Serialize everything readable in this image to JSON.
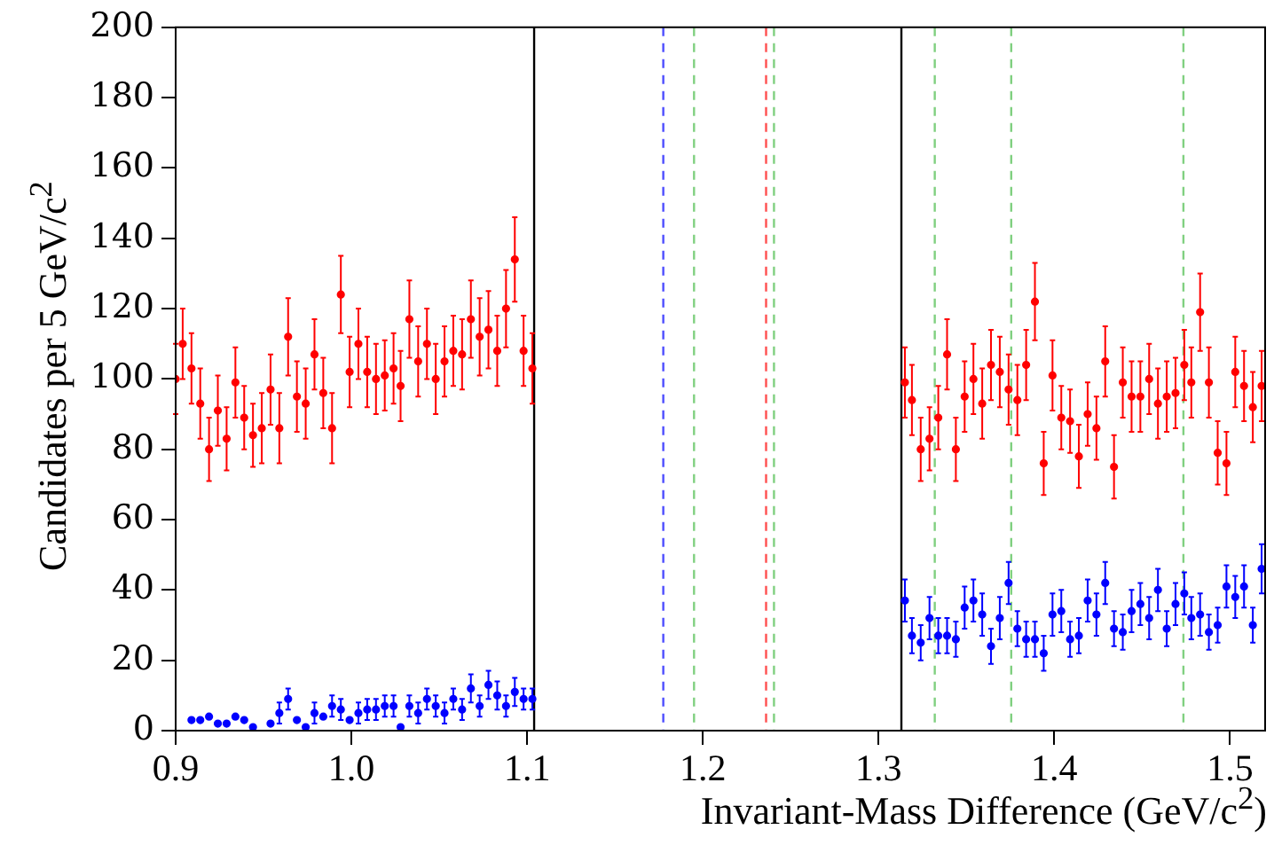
{
  "chart_data": {
    "type": "scatter",
    "xlabel": "Invariant-Mass Difference (GeV/c$^{2}$)",
    "ylabel": "Candidates per 5 GeV/c$^{2}$",
    "xlim": [
      0.9,
      1.52
    ],
    "xticks": [
      {
        "value": 0.9,
        "label": "0.9"
      },
      {
        "value": 1.0,
        "label": "1.0"
      },
      {
        "value": 1.1,
        "label": "1.1"
      },
      {
        "value": 1.2,
        "label": "1.2"
      },
      {
        "value": 1.3,
        "label": "1.3"
      },
      {
        "value": 1.4,
        "label": "1.4"
      },
      {
        "value": 1.5,
        "label": "1.5"
      }
    ],
    "ylim": [
      0,
      200
    ],
    "yticks": [
      0,
      20,
      40,
      60,
      80,
      100,
      120,
      140,
      160,
      180,
      200
    ],
    "grid": false,
    "legend": false,
    "marker": "circle",
    "series": [
      {
        "color": "#ff0000",
        "x": [
          0.9,
          0.904,
          0.909,
          0.914,
          0.919,
          0.924,
          0.929,
          0.934,
          0.939,
          0.944,
          0.949,
          0.954,
          0.959,
          0.964,
          0.969,
          0.974,
          0.979,
          0.984,
          0.989,
          0.994,
          0.999,
          1.004,
          1.009,
          1.014,
          1.019,
          1.024,
          1.028,
          1.033,
          1.038,
          1.043,
          1.048,
          1.053,
          1.058,
          1.063,
          1.068,
          1.073,
          1.078,
          1.083,
          1.088,
          1.093,
          1.098,
          1.103
        ],
        "values": [
          100,
          110,
          103,
          93,
          80,
          91,
          83,
          99,
          89,
          84,
          86,
          97,
          86,
          112,
          95,
          93,
          107,
          96,
          86,
          124,
          102,
          110,
          102,
          100,
          101,
          103,
          98,
          117,
          105,
          110,
          100,
          105,
          108,
          107,
          117,
          112,
          114,
          108,
          120,
          134,
          108,
          103
        ],
        "errors": [
          10,
          10,
          10,
          10,
          9,
          10,
          9,
          10,
          9,
          9,
          10,
          10,
          10,
          11,
          10,
          10,
          10,
          10,
          10,
          11,
          10,
          10,
          10,
          10,
          10,
          10,
          10,
          11,
          10,
          10,
          10,
          10,
          10,
          10,
          11,
          11,
          11,
          10,
          11,
          12,
          10,
          10
        ]
      },
      {
        "color": "#0000ff",
        "x": [
          0.909,
          0.914,
          0.919,
          0.924,
          0.929,
          0.934,
          0.939,
          0.944,
          0.954,
          0.959,
          0.964,
          0.969,
          0.974,
          0.979,
          0.984,
          0.989,
          0.994,
          0.999,
          1.004,
          1.009,
          1.014,
          1.019,
          1.024,
          1.028,
          1.033,
          1.038,
          1.043,
          1.048,
          1.053,
          1.058,
          1.063,
          1.068,
          1.073,
          1.078,
          1.083,
          1.088,
          1.093,
          1.098,
          1.103
        ],
        "values": [
          3,
          3,
          4,
          2,
          2,
          4,
          3,
          1,
          2,
          5,
          9,
          3,
          1,
          5,
          4,
          7,
          6,
          3,
          5,
          6,
          6,
          7,
          7,
          1,
          7,
          5,
          9,
          7,
          5,
          9,
          6,
          12,
          7,
          13,
          10,
          7,
          11,
          9,
          9
        ],
        "errors": [
          null,
          null,
          null,
          null,
          null,
          null,
          null,
          null,
          null,
          3,
          3,
          null,
          null,
          3,
          null,
          3,
          3,
          null,
          3,
          3,
          3,
          3,
          3,
          null,
          3,
          3,
          3,
          3,
          3,
          3,
          3,
          4,
          3,
          4,
          4,
          3,
          4,
          3,
          3
        ]
      },
      {
        "color": "#ff0000",
        "x": [
          1.315,
          1.319,
          1.324,
          1.329,
          1.334,
          1.339,
          1.344,
          1.349,
          1.354,
          1.359,
          1.364,
          1.369,
          1.374,
          1.379,
          1.384,
          1.389,
          1.394,
          1.399,
          1.404,
          1.409,
          1.414,
          1.419,
          1.424,
          1.429,
          1.434,
          1.439,
          1.444,
          1.449,
          1.454,
          1.459,
          1.464,
          1.469,
          1.474,
          1.478,
          1.483,
          1.488,
          1.493,
          1.498,
          1.503,
          1.508,
          1.513,
          1.518
        ],
        "values": [
          99,
          94,
          80,
          83,
          89,
          107,
          80,
          95,
          100,
          93,
          104,
          102,
          97,
          94,
          104,
          122,
          76,
          101,
          89,
          88,
          78,
          90,
          86,
          105,
          75,
          99,
          95,
          95,
          100,
          93,
          95,
          96,
          104,
          99,
          119,
          99,
          79,
          76,
          102,
          98,
          92,
          98
        ],
        "errors": [
          10,
          10,
          9,
          9,
          9,
          10,
          9,
          10,
          10,
          10,
          10,
          10,
          10,
          10,
          10,
          11,
          9,
          10,
          9,
          9,
          9,
          9,
          9,
          10,
          9,
          10,
          10,
          10,
          10,
          10,
          10,
          10,
          10,
          10,
          11,
          10,
          9,
          9,
          10,
          10,
          10,
          10
        ]
      },
      {
        "color": "#0000ff",
        "x": [
          1.315,
          1.319,
          1.324,
          1.329,
          1.334,
          1.339,
          1.344,
          1.349,
          1.354,
          1.359,
          1.364,
          1.369,
          1.374,
          1.379,
          1.384,
          1.389,
          1.394,
          1.399,
          1.404,
          1.409,
          1.414,
          1.419,
          1.424,
          1.429,
          1.434,
          1.439,
          1.444,
          1.449,
          1.454,
          1.459,
          1.464,
          1.469,
          1.474,
          1.478,
          1.483,
          1.488,
          1.493,
          1.498,
          1.503,
          1.508,
          1.513,
          1.518
        ],
        "values": [
          37,
          27,
          25,
          32,
          27,
          27,
          26,
          35,
          37,
          33,
          24,
          32,
          42,
          29,
          26,
          26,
          22,
          33,
          34,
          26,
          27,
          37,
          33,
          42,
          29,
          28,
          34,
          36,
          32,
          40,
          29,
          36,
          39,
          32,
          33,
          28,
          30,
          41,
          38,
          41,
          30,
          46
        ],
        "errors": [
          6,
          5,
          5,
          6,
          5,
          5,
          5,
          6,
          6,
          6,
          5,
          6,
          6,
          5,
          5,
          5,
          5,
          6,
          6,
          5,
          5,
          6,
          6,
          6,
          5,
          5,
          6,
          6,
          6,
          6,
          5,
          6,
          6,
          6,
          6,
          5,
          5,
          6,
          6,
          6,
          5,
          7
        ]
      }
    ],
    "ref_lines": [
      {
        "axis": "x",
        "value": 1.104,
        "color": "#000000",
        "line_style": "solid"
      },
      {
        "axis": "x",
        "value": 1.313,
        "color": "#000000",
        "line_style": "solid"
      },
      {
        "axis": "x",
        "value": 1.1775,
        "color": "#4d4dff",
        "line_style": "dashed"
      },
      {
        "axis": "x",
        "value": 1.195,
        "color": "#80d080",
        "line_style": "dashed"
      },
      {
        "axis": "x",
        "value": 1.236,
        "color": "#ff5050",
        "line_style": "dashed"
      },
      {
        "axis": "x",
        "value": 1.2405,
        "color": "#80d080",
        "line_style": "dashed"
      },
      {
        "axis": "x",
        "value": 1.332,
        "color": "#80d080",
        "line_style": "dashed"
      },
      {
        "axis": "x",
        "value": 1.3755,
        "color": "#80d080",
        "line_style": "dashed"
      },
      {
        "axis": "x",
        "value": 1.4735,
        "color": "#80d080",
        "line_style": "dashed"
      }
    ]
  }
}
